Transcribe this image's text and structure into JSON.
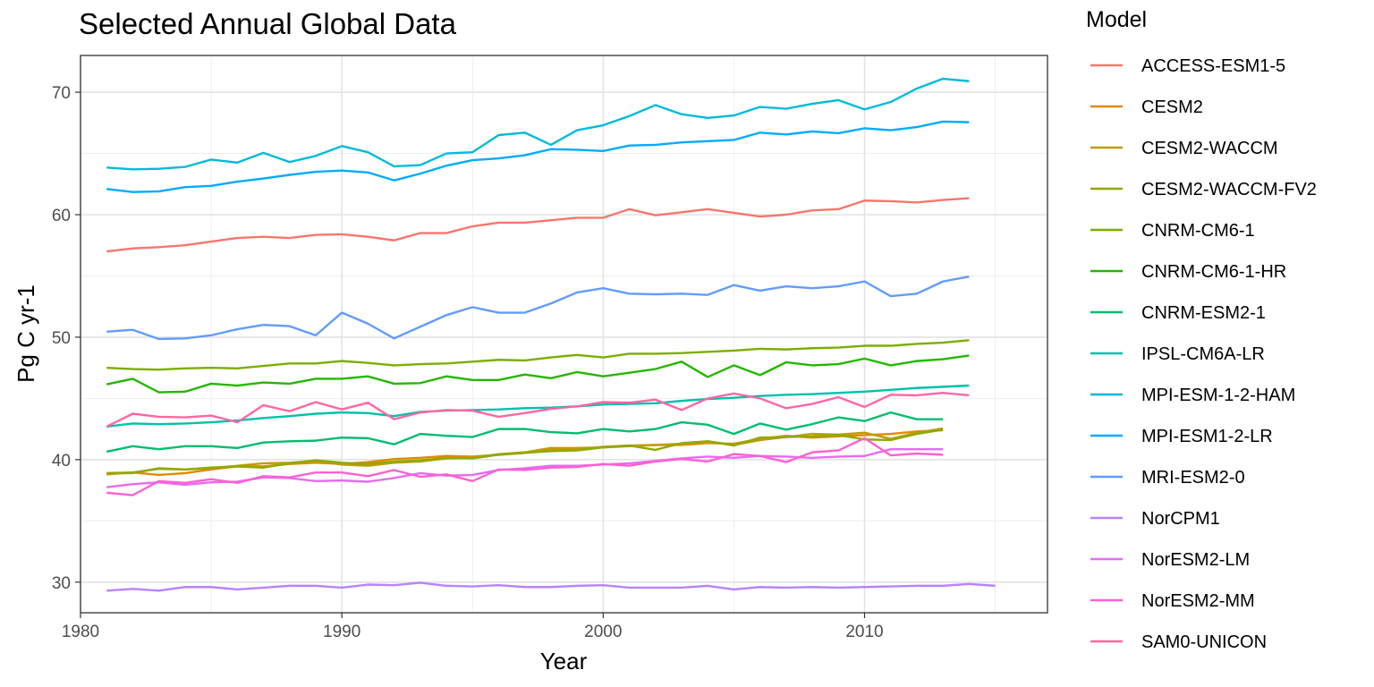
{
  "chart_data": {
    "type": "line",
    "title": "Selected Annual Global Data",
    "xlabel": "Year",
    "ylabel": "Pg C yr-1",
    "xlim": [
      1980,
      2017
    ],
    "ylim": [
      27.5,
      73.0
    ],
    "x_ticks": [
      1980,
      1990,
      2000,
      2010
    ],
    "y_ticks": [
      30,
      40,
      50,
      60,
      70
    ],
    "grid": true,
    "legend_title": "Model",
    "legend_position": "right",
    "series": [
      {
        "name": "ACCESS-ESM1-5",
        "color": "#F8766D",
        "x_start": 1981,
        "values": [
          57.0,
          57.25,
          57.35,
          57.5,
          57.8,
          58.1,
          58.2,
          58.1,
          58.35,
          58.4,
          58.2,
          57.9,
          58.5,
          58.5,
          59.05,
          59.35,
          59.35,
          59.55,
          59.75,
          59.75,
          60.45,
          59.95,
          60.2,
          60.45,
          60.15,
          59.85,
          60.0,
          60.35,
          60.45,
          61.15,
          61.1,
          61.0,
          61.2,
          61.35
        ]
      },
      {
        "name": "CESM2",
        "color": "#E18A00",
        "x_start": 1981,
        "values": [
          38.8,
          38.95,
          38.75,
          38.9,
          39.2,
          39.45,
          39.45,
          39.65,
          39.75,
          39.65,
          39.8,
          40.05,
          40.15,
          40.3,
          40.25,
          40.4,
          40.55,
          40.85,
          40.85,
          41.05,
          41.15,
          41.2,
          41.2,
          41.35,
          41.3,
          41.7,
          41.95,
          41.8,
          41.9,
          42.0,
          42.1,
          42.3,
          42.4
        ]
      },
      {
        "name": "CESM2-WACCM",
        "color": "#BE9C00",
        "x_start": 1981,
        "values": [
          38.9,
          38.9,
          39.3,
          39.2,
          39.3,
          39.5,
          39.7,
          39.75,
          39.9,
          39.6,
          39.5,
          39.75,
          39.85,
          40.1,
          40.15,
          40.45,
          40.6,
          40.95,
          40.95,
          41.0,
          41.1,
          41.2,
          41.3,
          41.5,
          41.2,
          41.6,
          41.85,
          42.1,
          42.05,
          42.2,
          41.7,
          42.2,
          42.55
        ]
      },
      {
        "name": "CESM2-WACCM-FV2",
        "color": "#8CAB00",
        "x_start": 1981,
        "values": [
          38.9,
          38.95,
          39.25,
          39.2,
          39.35,
          39.45,
          39.35,
          39.7,
          39.95,
          39.75,
          39.65,
          39.85,
          39.95,
          40.15,
          40.1,
          40.4,
          40.55,
          40.7,
          40.75,
          41.0,
          41.15,
          40.8,
          41.35,
          41.5,
          41.15,
          41.8,
          41.85,
          41.9,
          42.0,
          41.65,
          41.6,
          42.1,
          42.45
        ]
      },
      {
        "name": "CNRM-CM6-1",
        "color": "#7CAE00",
        "x_start": 1981,
        "values": [
          47.5,
          47.4,
          47.35,
          47.45,
          47.5,
          47.45,
          47.65,
          47.85,
          47.85,
          48.05,
          47.9,
          47.7,
          47.8,
          47.85,
          48.0,
          48.15,
          48.1,
          48.35,
          48.55,
          48.35,
          48.65,
          48.65,
          48.7,
          48.8,
          48.9,
          49.05,
          49.0,
          49.1,
          49.15,
          49.3,
          49.3,
          49.45,
          49.55,
          49.75
        ]
      },
      {
        "name": "CNRM-CM6-1-HR",
        "color": "#24B700",
        "x_start": 1981,
        "values": [
          46.15,
          46.6,
          45.5,
          45.55,
          46.2,
          46.05,
          46.3,
          46.2,
          46.6,
          46.6,
          46.8,
          46.2,
          46.25,
          46.8,
          46.5,
          46.5,
          46.95,
          46.65,
          47.15,
          46.8,
          47.1,
          47.4,
          48.0,
          46.75,
          47.7,
          46.9,
          47.95,
          47.7,
          47.8,
          48.25,
          47.7,
          48.05,
          48.2,
          48.5
        ]
      },
      {
        "name": "CNRM-ESM2-1",
        "color": "#00BE70",
        "x_start": 1981,
        "values": [
          40.65,
          41.1,
          40.85,
          41.1,
          41.1,
          40.95,
          41.4,
          41.5,
          41.55,
          41.8,
          41.75,
          41.25,
          42.1,
          41.95,
          41.85,
          42.5,
          42.5,
          42.25,
          42.15,
          42.5,
          42.3,
          42.5,
          43.05,
          42.85,
          42.1,
          42.95,
          42.45,
          42.9,
          43.45,
          43.15,
          43.85,
          43.3,
          43.3
        ]
      },
      {
        "name": "IPSL-CM6A-LR",
        "color": "#00C1AB",
        "x_start": 1981,
        "values": [
          42.7,
          42.95,
          42.9,
          42.95,
          43.05,
          43.2,
          43.4,
          43.55,
          43.75,
          43.85,
          43.8,
          43.55,
          43.9,
          44.0,
          44.05,
          44.1,
          44.2,
          44.25,
          44.35,
          44.5,
          44.55,
          44.6,
          44.8,
          44.95,
          45.05,
          45.2,
          45.3,
          45.35,
          45.45,
          45.55,
          45.7,
          45.85,
          45.95,
          46.05
        ]
      },
      {
        "name": "MPI-ESM-1-2-HAM",
        "color": "#00BBDA",
        "x_start": 1981,
        "values": [
          63.85,
          63.7,
          63.75,
          63.9,
          64.5,
          64.25,
          65.05,
          64.3,
          64.8,
          65.6,
          65.1,
          63.95,
          64.05,
          65.0,
          65.1,
          66.5,
          66.7,
          65.7,
          66.9,
          67.3,
          68.05,
          68.95,
          68.2,
          67.9,
          68.1,
          68.8,
          68.65,
          69.05,
          69.35,
          68.6,
          69.2,
          70.3,
          71.1,
          70.9
        ]
      },
      {
        "name": "MPI-ESM1-2-LR",
        "color": "#00ACFC",
        "x_start": 1981,
        "values": [
          62.1,
          61.85,
          61.9,
          62.25,
          62.35,
          62.7,
          62.95,
          63.25,
          63.5,
          63.6,
          63.45,
          62.8,
          63.35,
          64.0,
          64.45,
          64.6,
          64.85,
          65.35,
          65.3,
          65.2,
          65.65,
          65.7,
          65.9,
          66.0,
          66.1,
          66.7,
          66.55,
          66.8,
          66.65,
          67.05,
          66.9,
          67.15,
          67.6,
          67.55
        ]
      },
      {
        "name": "MRI-ESM2-0",
        "color": "#619CFF",
        "x_start": 1981,
        "values": [
          50.45,
          50.6,
          49.85,
          49.9,
          50.15,
          50.65,
          51.0,
          50.9,
          50.15,
          52.0,
          51.1,
          49.9,
          50.85,
          51.8,
          52.45,
          52.0,
          52.0,
          52.75,
          53.65,
          54.0,
          53.55,
          53.5,
          53.55,
          53.45,
          54.25,
          53.8,
          54.15,
          54.0,
          54.15,
          54.55,
          53.35,
          53.55,
          54.55,
          54.95
        ]
      },
      {
        "name": "NorCPM1",
        "color": "#B983FF",
        "x_start": 1981,
        "values": [
          29.3,
          29.45,
          29.3,
          29.6,
          29.6,
          29.4,
          29.55,
          29.7,
          29.7,
          29.55,
          29.8,
          29.75,
          29.95,
          29.7,
          29.65,
          29.75,
          29.6,
          29.6,
          29.7,
          29.75,
          29.55,
          29.55,
          29.55,
          29.7,
          29.4,
          29.6,
          29.55,
          29.6,
          29.55,
          29.6,
          29.65,
          29.7,
          29.7,
          29.85,
          29.7
        ]
      },
      {
        "name": "NorESM2-LM",
        "color": "#E76BF3",
        "x_start": 1981,
        "values": [
          37.75,
          38.0,
          38.15,
          37.95,
          38.15,
          38.2,
          38.55,
          38.5,
          38.25,
          38.3,
          38.2,
          38.5,
          38.9,
          38.7,
          38.75,
          39.15,
          39.3,
          39.5,
          39.5,
          39.6,
          39.7,
          39.9,
          40.1,
          40.25,
          40.15,
          40.3,
          40.25,
          40.15,
          40.25,
          40.3,
          40.85,
          40.85,
          40.85
        ]
      },
      {
        "name": "NorESM2-MM",
        "color": "#FD61D1",
        "x_start": 1981,
        "values": [
          37.3,
          37.1,
          38.25,
          38.1,
          38.4,
          38.1,
          38.65,
          38.55,
          38.95,
          38.95,
          38.65,
          39.15,
          38.6,
          38.8,
          38.25,
          39.2,
          39.15,
          39.35,
          39.4,
          39.65,
          39.5,
          39.85,
          40.05,
          39.85,
          40.45,
          40.3,
          39.8,
          40.6,
          40.75,
          41.75,
          40.35,
          40.5,
          40.4
        ]
      },
      {
        "name": "SAM0-UNICON",
        "color": "#FF67A4",
        "x_start": 1981,
        "values": [
          42.7,
          43.75,
          43.5,
          43.45,
          43.6,
          43.05,
          44.45,
          43.95,
          44.7,
          44.1,
          44.65,
          43.3,
          43.85,
          44.05,
          44.0,
          43.5,
          43.8,
          44.15,
          44.35,
          44.7,
          44.65,
          44.9,
          44.05,
          45.0,
          45.4,
          45.0,
          44.2,
          44.55,
          45.1,
          44.3,
          45.3,
          45.25,
          45.45,
          45.25
        ]
      }
    ]
  }
}
